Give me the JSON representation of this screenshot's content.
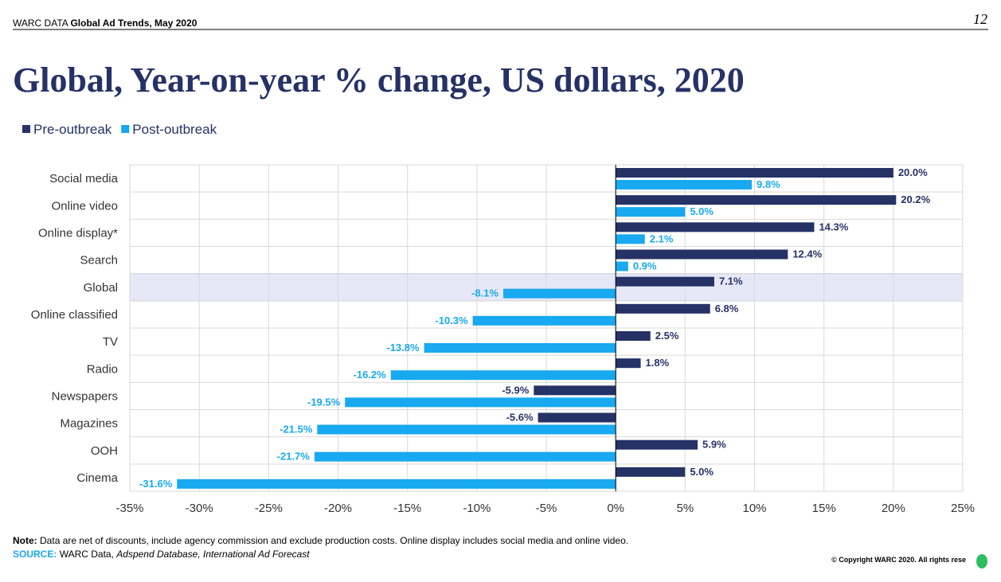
{
  "header": {
    "label": "WARC DATA",
    "report": "Global Ad Trends, May 2020",
    "page": "12"
  },
  "chart_data": {
    "type": "hbar",
    "title": "Global, Year-on-year % change, US dollars, 2020",
    "categories": [
      "Social media",
      "Online video",
      "Online display*",
      "Search",
      "Global",
      "Online classified",
      "TV",
      "Radio",
      "Newspapers",
      "Magazines",
      "OOH",
      "Cinema"
    ],
    "highlighted_category": "Global",
    "series": [
      {
        "name": "Pre-outbreak",
        "color": "#263266",
        "values": [
          20.0,
          20.2,
          14.3,
          12.4,
          7.1,
          6.8,
          2.5,
          1.8,
          -5.9,
          -5.6,
          5.9,
          5.0
        ],
        "value_labels": [
          "20.0%",
          "20.2%",
          "14.3%",
          "12.4%",
          "7.1%",
          "6.8%",
          "2.5%",
          "1.8%",
          "-5.9%",
          "-5.6%",
          "5.9%",
          "5.0%"
        ]
      },
      {
        "name": "Post-outbreak",
        "color": "#18a9f0",
        "values": [
          9.8,
          5.0,
          2.1,
          0.9,
          -8.1,
          -10.3,
          -13.8,
          -16.2,
          -19.5,
          -21.5,
          -21.7,
          -31.6
        ],
        "value_labels": [
          "9.8%",
          "5.0%",
          "2.1%",
          "0.9%",
          "-8.1%",
          "-10.3%",
          "-13.8%",
          "-16.2%",
          "-19.5%",
          "-21.5%",
          "-21.7%",
          "-31.6%"
        ]
      }
    ],
    "xlim": [
      -35,
      25
    ],
    "xticks": [
      {
        "value": -35,
        "label": "-35%"
      },
      {
        "value": -30,
        "label": "-30%"
      },
      {
        "value": -25,
        "label": "-25%"
      },
      {
        "value": -20,
        "label": "-20%"
      },
      {
        "value": -15,
        "label": "-15%"
      },
      {
        "value": -10,
        "label": "-10%"
      },
      {
        "value": -5,
        "label": "-5%"
      },
      {
        "value": 0,
        "label": "0%"
      },
      {
        "value": 5,
        "label": "5%"
      },
      {
        "value": 10,
        "label": "10%"
      },
      {
        "value": 15,
        "label": "15%"
      },
      {
        "value": 20,
        "label": "20%"
      },
      {
        "value": 25,
        "label": "25%"
      }
    ],
    "grid": true,
    "legend": "top-left"
  },
  "note": {
    "label": "Note:",
    "text": "Data are net of discounts, include agency commission and exclude production costs. Online display includes social media and online video."
  },
  "source": {
    "label": "SOURCE:",
    "text": "WARC Data,",
    "italic": "Adspend Database, International Ad Forecast"
  },
  "copyright": "© Copyright WARC 2020. All rights rese"
}
